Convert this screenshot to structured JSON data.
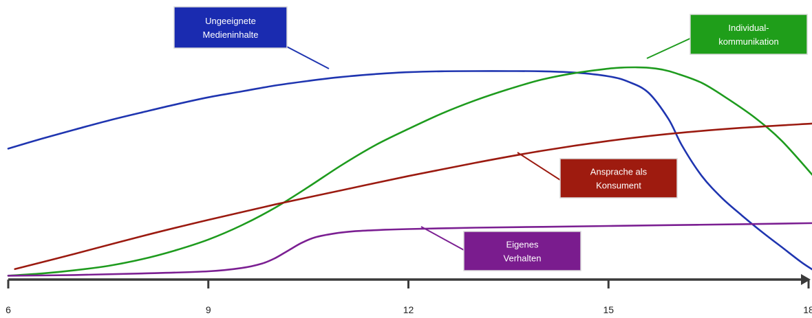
{
  "chart_data": {
    "type": "line",
    "title": "",
    "xlabel": "",
    "ylabel": "",
    "xlim": [
      6,
      18
    ],
    "ylim": [
      0,
      100
    ],
    "x_ticks": [
      6,
      9,
      12,
      15,
      18
    ],
    "x_tick_labels": [
      "6",
      "9",
      "12",
      "15",
      "18"
    ],
    "y_axis_visible": false,
    "grid": false,
    "legend": "callouts",
    "series": [
      {
        "name": "Ungeeignete Medieninhalte",
        "color": "#1f35b0",
        "label_fill": "#1a2bb0",
        "label_lines": [
          "Ungeeignete",
          "Medieninhalte"
        ],
        "x": [
          6.0,
          6.5,
          7.0,
          7.5,
          8.0,
          8.5,
          9.0,
          9.5,
          10.0,
          10.5,
          11.0,
          11.5,
          12.0,
          12.5,
          13.0,
          13.5,
          14.0,
          14.5,
          15.0,
          15.3,
          15.6,
          15.9,
          16.1,
          16.4,
          16.7,
          17.0,
          17.3,
          17.6,
          17.9,
          18.1
        ],
        "y": [
          58.5,
          63.0,
          67.2,
          71.3,
          75.0,
          78.6,
          81.9,
          84.6,
          87.3,
          89.4,
          91.2,
          92.5,
          93.4,
          93.8,
          93.9,
          93.9,
          93.8,
          93.2,
          91.5,
          89.0,
          84.0,
          72.0,
          60.0,
          46.0,
          36.0,
          28.0,
          20.5,
          13.5,
          6.5,
          2.5
        ]
      },
      {
        "name": "Individual-kommunikation",
        "color": "#1e9b1e",
        "label_fill": "#1f9e1a",
        "label_lines": [
          "Individual-",
          "kommunikation"
        ],
        "x": [
          6.0,
          6.5,
          7.0,
          7.5,
          8.0,
          8.5,
          9.0,
          9.5,
          10.0,
          10.5,
          11.0,
          11.5,
          12.0,
          12.5,
          13.0,
          13.5,
          14.0,
          14.5,
          15.0,
          15.2,
          15.4,
          15.6,
          15.8,
          16.0,
          16.4,
          16.8,
          17.2,
          17.6,
          18.1
        ],
        "y": [
          0.5,
          1.5,
          3.0,
          5.0,
          8.0,
          12.0,
          17.0,
          23.5,
          31.5,
          41.0,
          51.0,
          60.0,
          67.5,
          74.5,
          80.5,
          85.6,
          90.0,
          93.0,
          95.0,
          95.5,
          95.6,
          95.4,
          94.6,
          93.0,
          88.5,
          81.0,
          72.5,
          62.0,
          45.0
        ]
      },
      {
        "name": "Ansprache als Konsument",
        "color": "#9b1a10",
        "label_fill": "#9e1b0f",
        "label_lines": [
          "Ansprache als",
          "Konsument"
        ],
        "x": [
          6.1,
          7.0,
          8.0,
          9.0,
          10.0,
          11.0,
          12.0,
          13.0,
          14.0,
          15.0,
          16.0,
          17.0,
          18.1
        ],
        "y": [
          3.5,
          10.5,
          18.5,
          26.0,
          33.0,
          39.5,
          46.0,
          52.0,
          57.5,
          62.0,
          65.5,
          68.0,
          70.0
        ]
      },
      {
        "name": "Eigenes Verhalten",
        "color": "#7b1f92",
        "label_fill": "#7a1c8e",
        "label_lines": [
          "Eigenes",
          "Verhalten"
        ],
        "x": [
          6.0,
          7.0,
          8.0,
          9.0,
          9.5,
          9.8,
          10.0,
          10.2,
          10.4,
          10.6,
          10.9,
          11.2,
          11.6,
          12.0,
          13.0,
          14.0,
          15.0,
          16.0,
          17.0,
          18.1
        ],
        "y": [
          0.5,
          0.8,
          1.5,
          2.5,
          4.0,
          6.0,
          8.5,
          12.0,
          15.5,
          18.0,
          19.8,
          20.8,
          21.4,
          21.8,
          22.4,
          22.8,
          23.2,
          23.6,
          24.0,
          24.5
        ]
      }
    ]
  }
}
